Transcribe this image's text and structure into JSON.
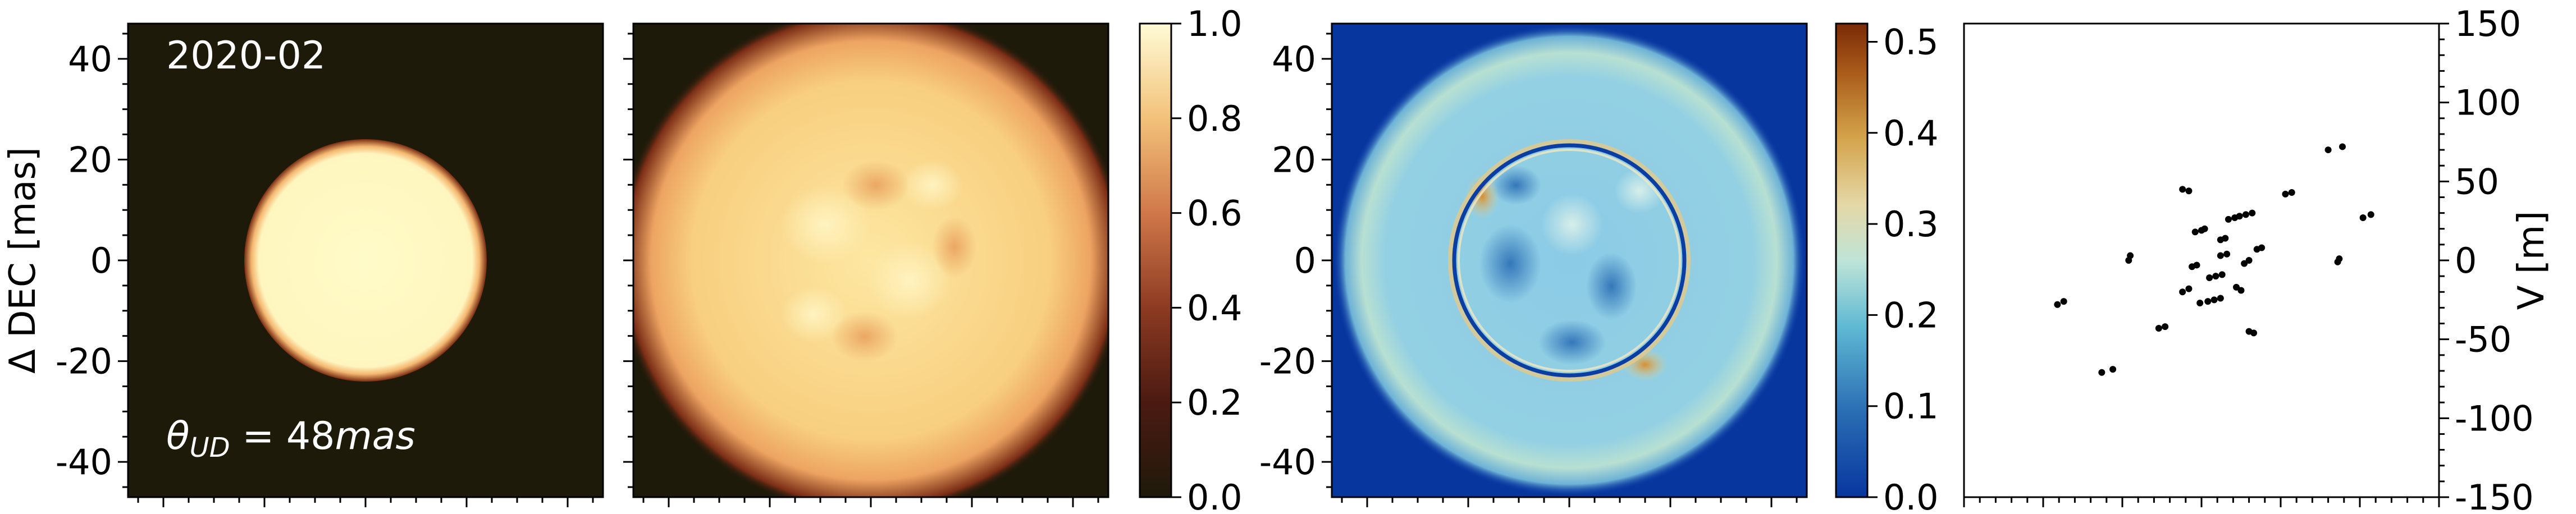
{
  "chart_data": [
    {
      "type": "heatmap",
      "panel": "uniform-disk-model",
      "title": "",
      "xlabel": "",
      "ylabel": "Δ DEC [mas]",
      "ylim": [
        -47,
        47
      ],
      "yticks": [
        40,
        20,
        0,
        -20,
        -40
      ],
      "ytick_labels": [
        "40",
        "20",
        "0",
        "-20",
        "-40"
      ],
      "colormap": "afmhot",
      "annotations": {
        "epoch": "2020-02",
        "theta_prefix": "θ",
        "theta_sub": "UD",
        "theta_value": " = 48",
        "theta_unit": "mas"
      },
      "disk": {
        "diameter_mas": 48,
        "intensity": 1.0,
        "background": 0.0
      }
    },
    {
      "type": "heatmap",
      "panel": "reconstructed-image",
      "title": "",
      "xlabel": "",
      "ylabel": "",
      "colormap": "afmhot",
      "disk": {
        "diameter_mas": 48,
        "intensity_range": [
          0.8,
          0.95
        ]
      }
    },
    {
      "type": "colorbar",
      "panel": "intensity-colorbar",
      "range": [
        0.0,
        1.0
      ],
      "ticks": [
        0.0,
        0.2,
        0.4,
        0.6,
        0.8,
        1.0
      ],
      "tick_labels": [
        "0.0",
        "0.2",
        "0.4",
        "0.6",
        "0.8",
        "1.0"
      ]
    },
    {
      "type": "heatmap",
      "panel": "residual-image",
      "title": "",
      "xlabel": "",
      "ylabel": "",
      "ylim": [
        -47,
        47
      ],
      "yticks": [
        40,
        20,
        0,
        -20,
        -40
      ],
      "ytick_labels": [
        "40",
        "20",
        "0",
        "-20",
        "-40"
      ],
      "colormap": "RdYlBu_r",
      "background": 0.0,
      "disk_fill_range": [
        0.1,
        0.2
      ],
      "ring_diameter_mas": 48
    },
    {
      "type": "colorbar",
      "panel": "residual-colorbar",
      "range": [
        0.0,
        0.52
      ],
      "ticks": [
        0.0,
        0.1,
        0.2,
        0.3,
        0.4,
        0.5
      ],
      "tick_labels": [
        "0.0",
        "0.1",
        "0.2",
        "0.3",
        "0.4",
        "0.5"
      ]
    },
    {
      "type": "scatter",
      "panel": "uv-coverage",
      "title": "",
      "xlabel": "",
      "ylabel": "V [m]",
      "ylim": [
        -150,
        150
      ],
      "xlim": [
        -150,
        150
      ],
      "yticks": [
        150,
        100,
        50,
        0,
        -50,
        -100,
        -150
      ],
      "ytick_labels": [
        "150",
        "100",
        "50",
        "0",
        "-50",
        "-100",
        "-150"
      ],
      "ylabel_position": "right",
      "points": [
        [
          -91,
          -28
        ],
        [
          -87,
          -26
        ],
        [
          -63,
          -71
        ],
        [
          -56,
          -69
        ],
        [
          -46,
          0
        ],
        [
          -45,
          3
        ],
        [
          -27,
          -43
        ],
        [
          -23,
          -42
        ],
        [
          -12,
          45
        ],
        [
          -8,
          44
        ],
        [
          -12,
          -20
        ],
        [
          -8,
          -18
        ],
        [
          -6,
          -4
        ],
        [
          -3,
          -3
        ],
        [
          -4,
          18
        ],
        [
          0,
          19
        ],
        [
          2,
          20
        ],
        [
          -1,
          -27
        ],
        [
          4,
          -26
        ],
        [
          8,
          -25
        ],
        [
          12,
          -24
        ],
        [
          5,
          -11
        ],
        [
          9,
          -10
        ],
        [
          13,
          -9
        ],
        [
          12,
          3
        ],
        [
          16,
          4
        ],
        [
          12,
          13
        ],
        [
          15,
          14
        ],
        [
          17,
          26
        ],
        [
          21,
          27
        ],
        [
          24,
          28
        ],
        [
          28,
          29
        ],
        [
          32,
          30
        ],
        [
          22,
          -17
        ],
        [
          25,
          -19
        ],
        [
          27,
          -2
        ],
        [
          30,
          0
        ],
        [
          30,
          -45
        ],
        [
          33,
          -46
        ],
        [
          35,
          7
        ],
        [
          38,
          8
        ],
        [
          53,
          42
        ],
        [
          57,
          43
        ],
        [
          80,
          70
        ],
        [
          89,
          72
        ],
        [
          86,
          -1
        ],
        [
          87,
          1
        ],
        [
          102,
          27
        ],
        [
          107,
          29
        ]
      ]
    }
  ]
}
